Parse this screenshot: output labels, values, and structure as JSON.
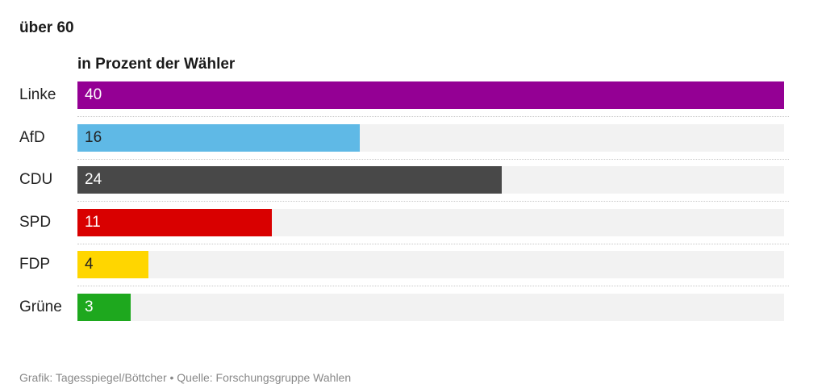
{
  "chart_data": {
    "type": "bar",
    "orientation": "horizontal",
    "title": "über 60",
    "subtitle": "in Prozent der Wähler",
    "categories": [
      "Linke",
      "AfD",
      "CDU",
      "SPD",
      "FDP",
      "Grüne"
    ],
    "values": [
      40,
      16,
      24,
      11,
      4,
      3
    ],
    "colors": [
      "#940094",
      "#5fb9e6",
      "#484848",
      "#d90000",
      "#ffd600",
      "#1ea81e"
    ],
    "value_label_colors": [
      "#ffffff",
      "#222222",
      "#ffffff",
      "#ffffff",
      "#222222",
      "#ffffff"
    ],
    "track_color": "#f2f2f2",
    "xlim": [
      0,
      40
    ],
    "grid": false,
    "legend": "none"
  },
  "source": "Grafik: Tagesspiegel/Böttcher • Quelle: Forschungsgruppe Wahlen"
}
